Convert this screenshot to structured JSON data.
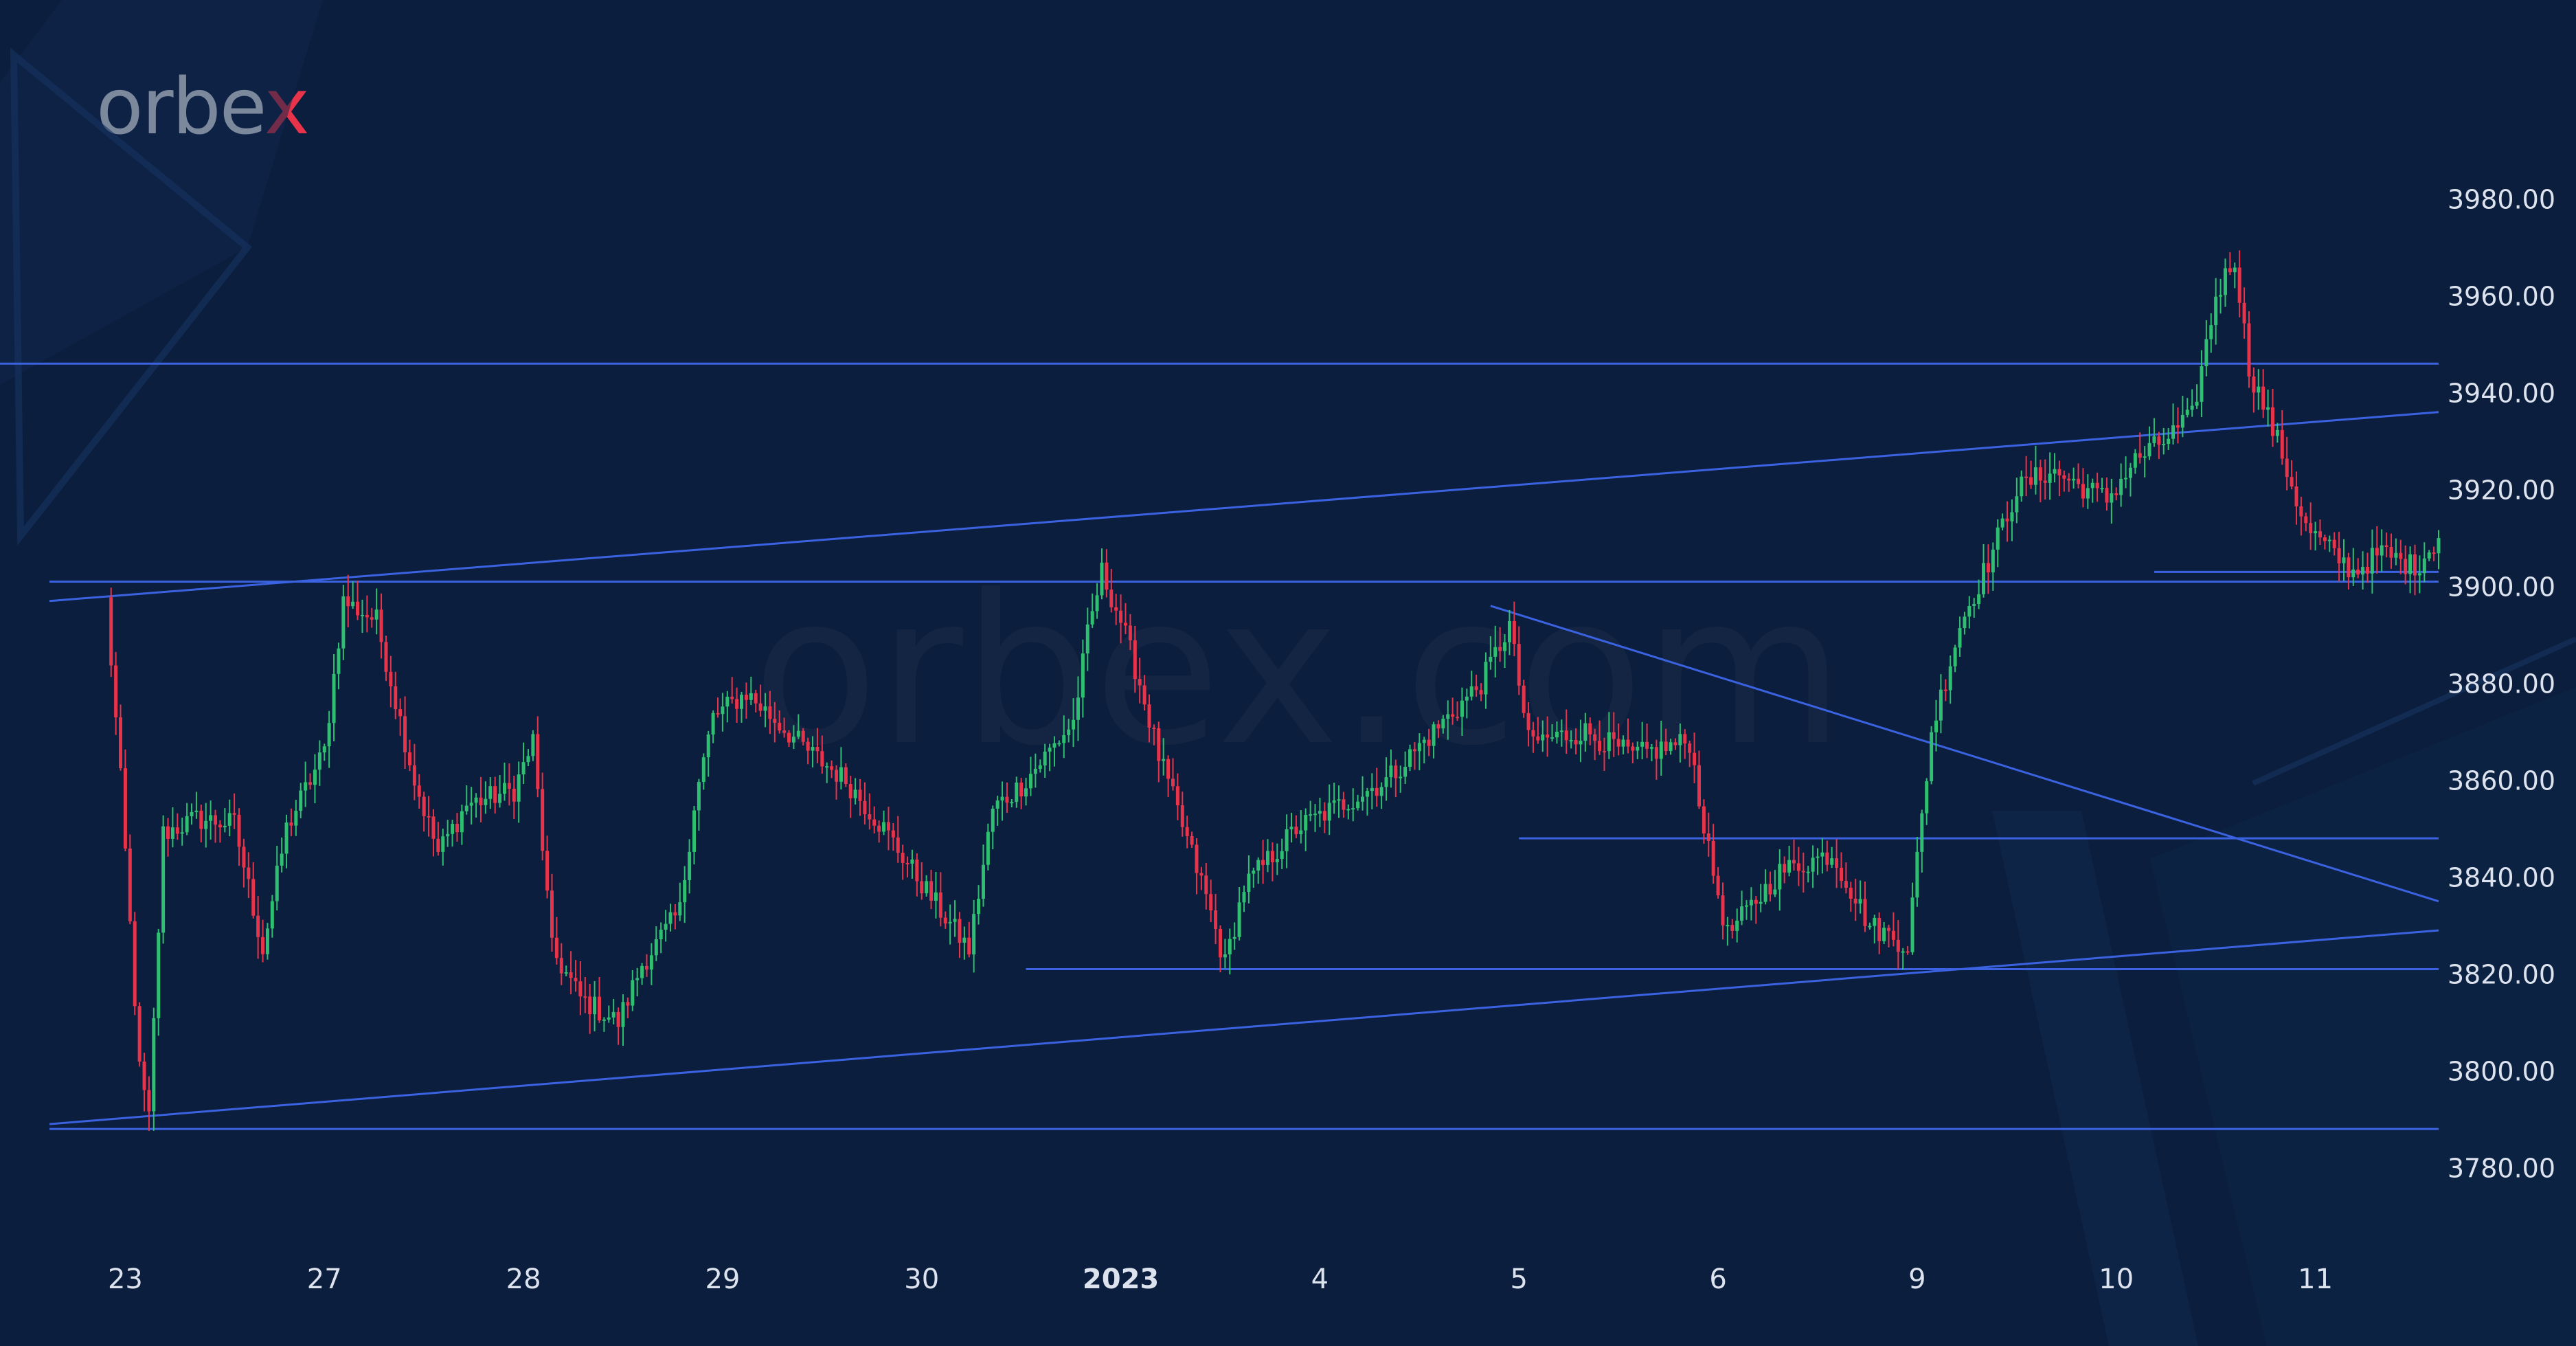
{
  "brand": {
    "text_main": "orbe",
    "text_accent": "x",
    "accent_color": "#e8344a"
  },
  "colors": {
    "background": "#0b1e3d",
    "up": "#2fbf71",
    "down": "#e8344a",
    "lines": "#3b62e0",
    "text": "#dde3ee"
  },
  "chart_data": {
    "type": "candlestick",
    "title": "",
    "xlabel": "",
    "ylabel": "",
    "ylim": [
      3770,
      3992
    ],
    "y_ticks": [
      "3780.00",
      "3800.00",
      "3820.00",
      "3840.00",
      "3860.00",
      "3880.00",
      "3900.00",
      "3920.00",
      "3940.00",
      "3960.00",
      "3980.00"
    ],
    "x_ticks": [
      {
        "label": "23",
        "bar": 4
      },
      {
        "label": "27",
        "bar": 46
      },
      {
        "label": "28",
        "bar": 88
      },
      {
        "label": "29",
        "bar": 130
      },
      {
        "label": "30",
        "bar": 172
      },
      {
        "label": "2023",
        "bar": 214,
        "bold": true
      },
      {
        "label": "4",
        "bar": 256
      },
      {
        "label": "5",
        "bar": 298
      },
      {
        "label": "6",
        "bar": 340
      },
      {
        "label": "9",
        "bar": 382
      },
      {
        "label": "10",
        "bar": 424
      },
      {
        "label": "11",
        "bar": 466
      }
    ],
    "bars_span": [
      -12,
      492
    ],
    "anchors": [
      [
        0,
        3897
      ],
      [
        3,
        3860
      ],
      [
        7,
        3800
      ],
      [
        9,
        3790
      ],
      [
        12,
        3849
      ],
      [
        19,
        3852
      ],
      [
        27,
        3851
      ],
      [
        33,
        3825
      ],
      [
        38,
        3850
      ],
      [
        46,
        3866
      ],
      [
        50,
        3897
      ],
      [
        57,
        3893
      ],
      [
        65,
        3860
      ],
      [
        70,
        3845
      ],
      [
        76,
        3855
      ],
      [
        86,
        3858
      ],
      [
        90,
        3868
      ],
      [
        94,
        3825
      ],
      [
        100,
        3815
      ],
      [
        108,
        3810
      ],
      [
        113,
        3822
      ],
      [
        121,
        3833
      ],
      [
        124,
        3855
      ],
      [
        128,
        3873
      ],
      [
        135,
        3878
      ],
      [
        148,
        3866
      ],
      [
        156,
        3860
      ],
      [
        164,
        3850
      ],
      [
        176,
        3833
      ],
      [
        182,
        3825
      ],
      [
        187,
        3854
      ],
      [
        193,
        3859
      ],
      [
        204,
        3872
      ],
      [
        207,
        3890
      ],
      [
        210,
        3903
      ],
      [
        214,
        3893
      ],
      [
        218,
        3880
      ],
      [
        222,
        3865
      ],
      [
        232,
        3836
      ],
      [
        236,
        3822
      ],
      [
        240,
        3838
      ],
      [
        251,
        3850
      ],
      [
        270,
        3860
      ],
      [
        280,
        3870
      ],
      [
        290,
        3880
      ],
      [
        296,
        3892
      ],
      [
        300,
        3868
      ],
      [
        312,
        3870
      ],
      [
        322,
        3865
      ],
      [
        334,
        3868
      ],
      [
        338,
        3845
      ],
      [
        342,
        3828
      ],
      [
        353,
        3841
      ],
      [
        364,
        3845
      ],
      [
        372,
        3830
      ],
      [
        380,
        3826
      ],
      [
        385,
        3870
      ],
      [
        391,
        3892
      ],
      [
        397,
        3905
      ],
      [
        403,
        3920
      ],
      [
        410,
        3924
      ],
      [
        422,
        3918
      ],
      [
        428,
        3926
      ],
      [
        434,
        3930
      ],
      [
        440,
        3935
      ],
      [
        445,
        3960
      ],
      [
        449,
        3968
      ],
      [
        452,
        3945
      ],
      [
        458,
        3930
      ],
      [
        464,
        3912
      ],
      [
        474,
        3903
      ],
      [
        480,
        3907
      ],
      [
        487,
        3904
      ],
      [
        492,
        3910
      ]
    ],
    "lines": [
      {
        "name": "upper-channel",
        "from": [
          -12,
          3897
        ],
        "to": [
          492,
          3936
        ]
      },
      {
        "name": "lower-channel",
        "from": [
          -12,
          3789
        ],
        "to": [
          492,
          3829
        ]
      },
      {
        "name": "resistance-3946",
        "from": [
          -200,
          3946
        ],
        "to": [
          492,
          3946
        ]
      },
      {
        "name": "support-3788",
        "from": [
          -12,
          3788
        ],
        "to": [
          492,
          3788
        ]
      },
      {
        "name": "level-3901",
        "from": [
          -12,
          3901
        ],
        "to": [
          492,
          3901
        ]
      },
      {
        "name": "level-3848",
        "from": [
          298,
          3848
        ],
        "to": [
          492,
          3848
        ]
      },
      {
        "name": "level-3821",
        "from": [
          194,
          3821
        ],
        "to": [
          492,
          3821
        ]
      },
      {
        "name": "level-3903",
        "from": [
          432,
          3903
        ],
        "to": [
          492,
          3903
        ]
      },
      {
        "name": "descending-trend",
        "from": [
          292,
          3896
        ],
        "to": [
          492,
          3835
        ]
      }
    ]
  },
  "watermark": "orbex.com"
}
